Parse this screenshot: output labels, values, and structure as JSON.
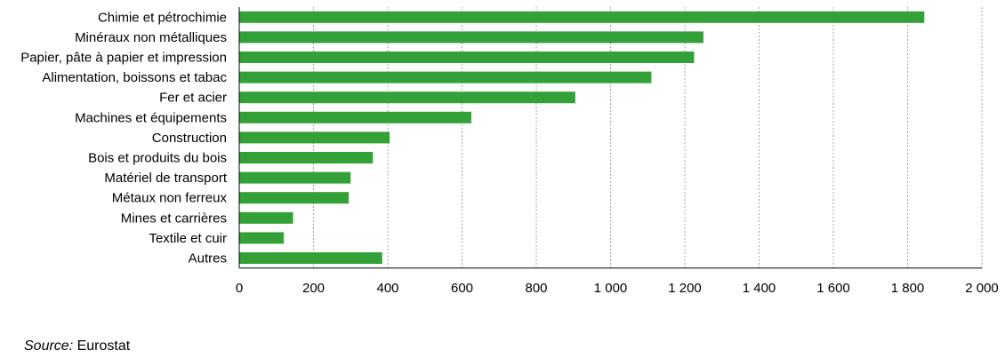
{
  "chart_data": {
    "type": "bar",
    "orientation": "horizontal",
    "categories": [
      "Chimie et pétrochimie",
      "Minéraux non métalliques",
      "Papier, pâte à papier et impression",
      "Alimentation, boissons et tabac",
      "Fer et acier",
      "Machines et équipements",
      "Construction",
      "Bois et produits du bois",
      "Matériel de transport",
      "Métaux non ferreux",
      "Mines et carrières",
      "Textile et cuir",
      "Autres"
    ],
    "values": [
      1845,
      1250,
      1225,
      1110,
      905,
      625,
      405,
      360,
      300,
      295,
      145,
      120,
      385
    ],
    "xlim": [
      0,
      2000
    ],
    "xticks": [
      0,
      200,
      400,
      600,
      800,
      1000,
      1200,
      1400,
      1600,
      1800,
      2000
    ],
    "xtick_labels": [
      "0",
      "200",
      "400",
      "600",
      "800",
      "1 000",
      "1 200",
      "1 400",
      "1 600",
      "1 800",
      "2 000"
    ],
    "grid": "vertical dashed",
    "bar_color": "#33a137"
  },
  "source": {
    "label": "Source:",
    "text": "Eurostat"
  }
}
